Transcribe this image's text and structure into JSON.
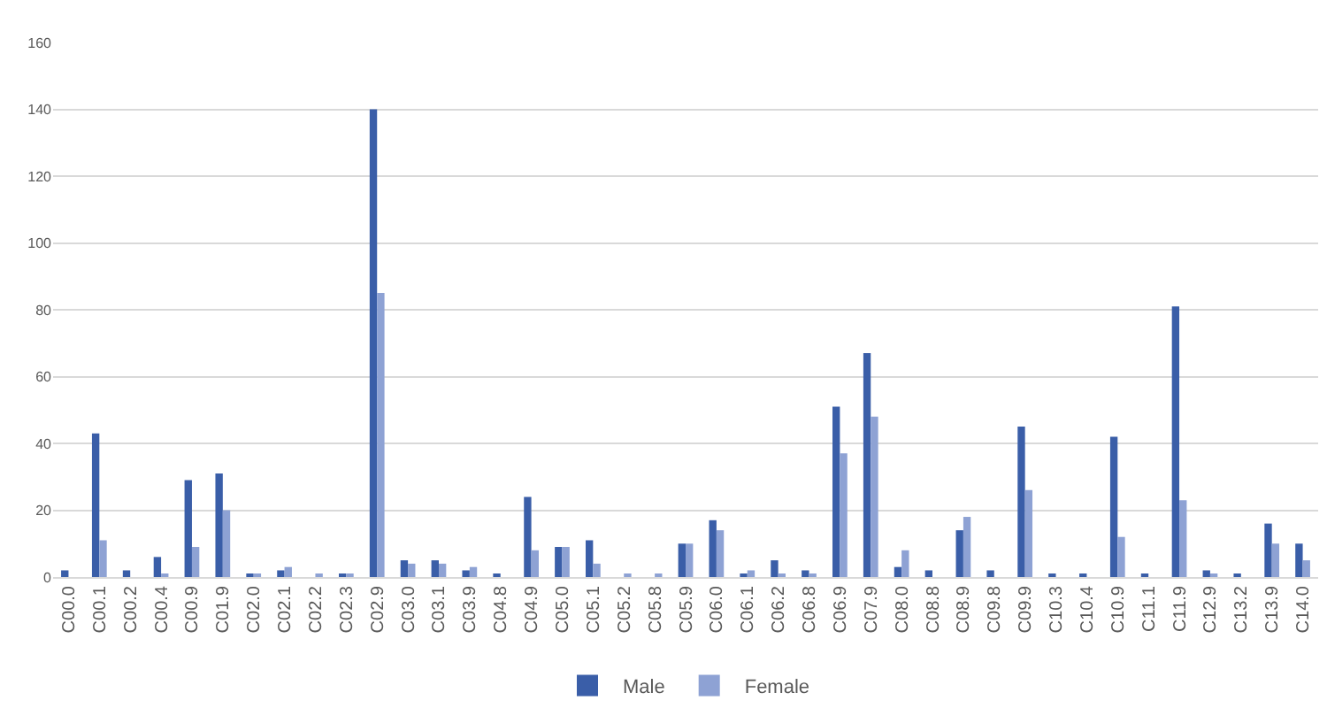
{
  "chart_data": {
    "type": "bar",
    "categories": [
      "C00.0",
      "C00.1",
      "C00.2",
      "C00.4",
      "C00.9",
      "C01.9",
      "C02.0",
      "C02.1",
      "C02.2",
      "C02.3",
      "C02.9",
      "C03.0",
      "C03.1",
      "C03.9",
      "C04.8",
      "C04.9",
      "C05.0",
      "C05.1",
      "C05.2",
      "C05.8",
      "C05.9",
      "C06.0",
      "C06.1",
      "C06.2",
      "C06.8",
      "C06.9",
      "C07.9",
      "C08.0",
      "C08.8",
      "C08.9",
      "C09.8",
      "C09.9",
      "C10.3",
      "C10.4",
      "C10.9",
      "C11.1",
      "C11.9",
      "C12.9",
      "C13.2",
      "C13.9",
      "C14.0"
    ],
    "series": [
      {
        "name": "Male",
        "color": "#3a5ea8",
        "values": [
          2,
          43,
          2,
          6,
          29,
          31,
          1,
          2,
          0,
          1,
          140,
          5,
          5,
          2,
          1,
          24,
          9,
          11,
          0,
          0,
          10,
          17,
          1,
          5,
          2,
          51,
          67,
          3,
          2,
          14,
          2,
          45,
          1,
          1,
          42,
          1,
          81,
          2,
          1,
          16,
          10
        ]
      },
      {
        "name": "Female",
        "color": "#8ea2d4",
        "values": [
          0,
          11,
          0,
          1,
          9,
          20,
          1,
          3,
          1,
          1,
          85,
          4,
          4,
          3,
          0,
          8,
          9,
          4,
          1,
          1,
          10,
          14,
          2,
          1,
          1,
          37,
          48,
          8,
          0,
          18,
          0,
          26,
          0,
          0,
          12,
          0,
          23,
          1,
          0,
          10,
          5
        ]
      }
    ],
    "ylim": [
      0,
      160
    ],
    "yticks": [
      0,
      20,
      40,
      60,
      80,
      100,
      120,
      140,
      160
    ],
    "grid": "y",
    "legend": "bottom"
  }
}
